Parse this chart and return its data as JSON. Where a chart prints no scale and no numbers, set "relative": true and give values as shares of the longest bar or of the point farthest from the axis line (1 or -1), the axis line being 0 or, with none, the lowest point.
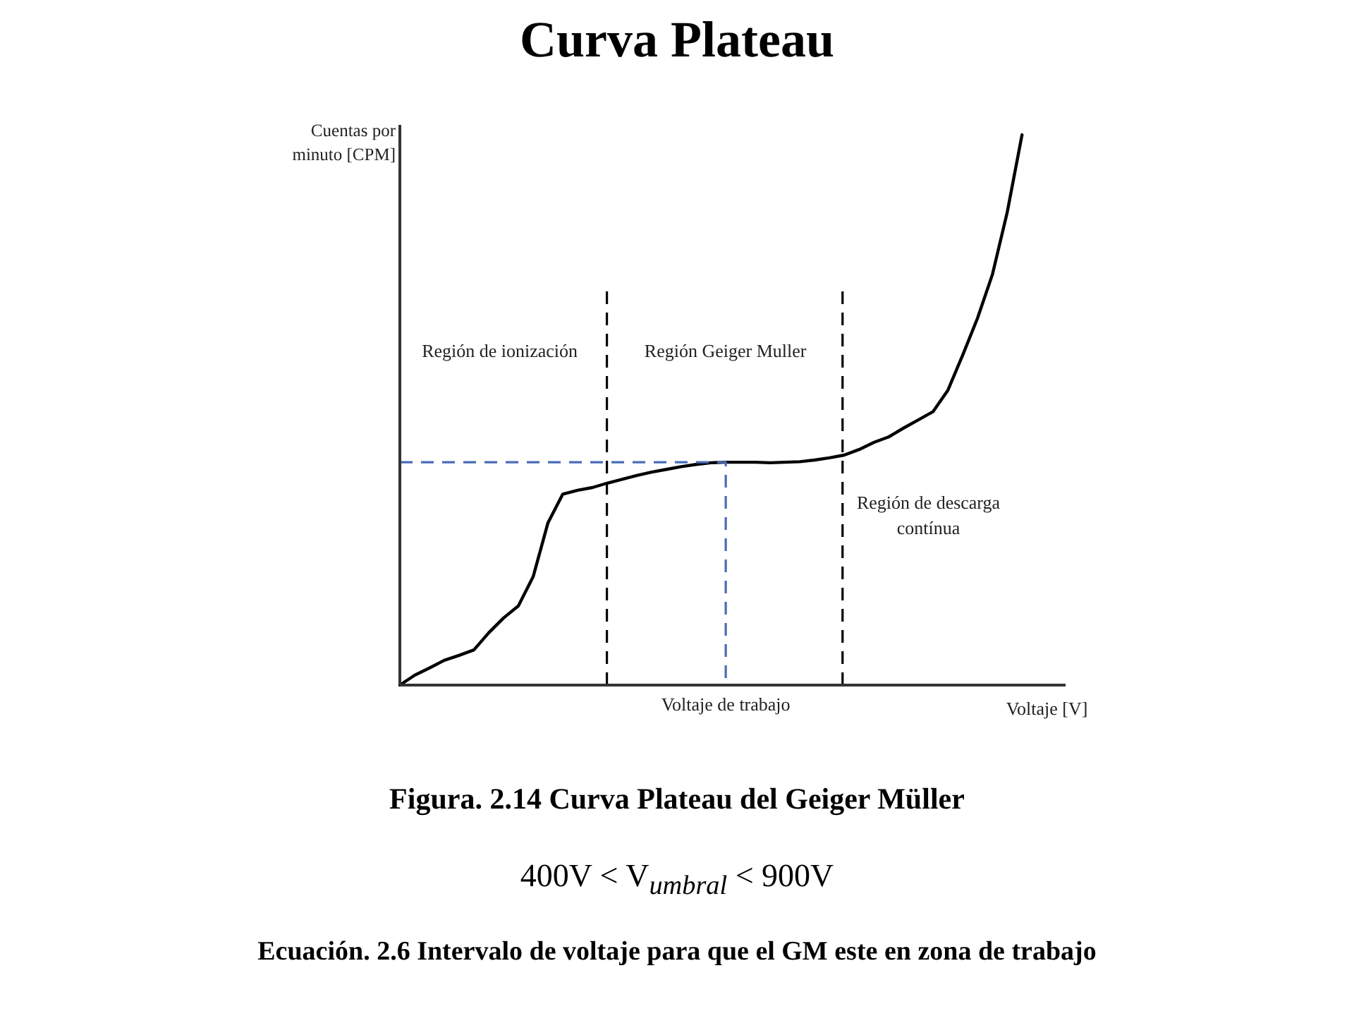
{
  "chart_data": {
    "type": "line",
    "title": "Curva Plateau",
    "xlabel": "Voltaje [V]",
    "ylabel": "Cuentas por minuto [CPM]",
    "relative": true,
    "categories": [
      null,
      null,
      null,
      null,
      null,
      null,
      null,
      null,
      null,
      null,
      null,
      null,
      null,
      null,
      null,
      null,
      null,
      null,
      null,
      null,
      null,
      null,
      null,
      null,
      null,
      null,
      null,
      null,
      null,
      null,
      null,
      null,
      null,
      null,
      null,
      null,
      null,
      null,
      null,
      null,
      null,
      null,
      null
    ],
    "values": [
      0,
      0.018,
      0.031,
      0.045,
      0.054,
      0.064,
      0.095,
      0.122,
      0.144,
      0.197,
      0.295,
      0.347,
      0.354,
      0.359,
      0.367,
      0.374,
      0.381,
      0.387,
      0.392,
      0.397,
      0.401,
      0.404,
      0.405,
      0.405,
      0.405,
      0.404,
      0.405,
      0.406,
      0.409,
      0.413,
      0.418,
      0.428,
      0.441,
      0.451,
      0.467,
      0.482,
      0.497,
      0.536,
      0.6,
      0.667,
      0.746,
      0.859,
      1
    ],
    "color": "#000000",
    "ref_lines": [
      {
        "axis": "y",
        "value": 0.405,
        "label": "Voltaje de trabajo",
        "color": "#4a6cb8",
        "line_style": "dashed"
      }
    ],
    "annotations": [
      "Región de ionización",
      "Región Geiger Muller",
      "Región de descarga contínua",
      "Figura. 2.14 Curva Plateau del Geiger Müller",
      "400V < V$_{umbral}$ < 900V",
      "Ecuación. 2.6 Intervalo de voltaje para que el GM este en zona de trabajo"
    ]
  }
}
